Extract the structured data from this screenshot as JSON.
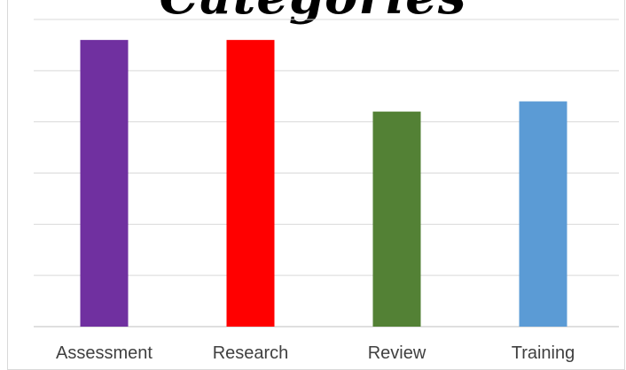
{
  "chart_data": {
    "type": "bar",
    "title": "Categories",
    "categories": [
      "Assessment",
      "Research",
      "Review",
      "Training"
    ],
    "values": [
      5.6,
      5.6,
      4.2,
      4.4
    ],
    "colors": [
      "#7030A0",
      "#FF0000",
      "#538135",
      "#5B9BD5"
    ],
    "xlabel": "",
    "ylabel": "",
    "ylim": [
      0,
      6
    ],
    "grid": true,
    "legend": "none"
  }
}
